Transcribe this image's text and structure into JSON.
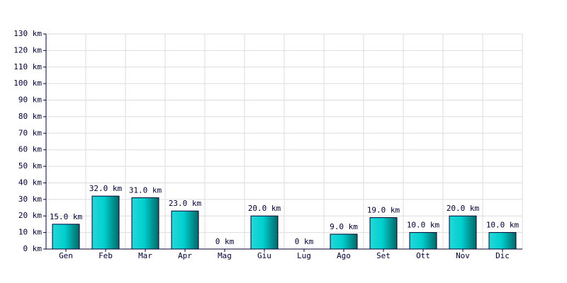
{
  "chart_data": {
    "type": "bar",
    "categories": [
      "Gen",
      "Feb",
      "Mar",
      "Apr",
      "Mag",
      "Giu",
      "Lug",
      "Ago",
      "Set",
      "Ott",
      "Nov",
      "Dic"
    ],
    "values": [
      15,
      32,
      31,
      23,
      0,
      20,
      0,
      9,
      19,
      10,
      20,
      10
    ],
    "value_labels": [
      "15.0 km",
      "32.0 km",
      "31.0 km",
      "23.0 km",
      "0 km",
      "20.0 km",
      "0 km",
      "9.0 km",
      "19.0 km",
      "10.0 km",
      "20.0 km",
      "10.0 km"
    ],
    "color": "#00d0d0",
    "ylim": [
      0,
      130
    ],
    "yticks": [
      {
        "value": 0,
        "label": "0 km"
      },
      {
        "value": 10,
        "label": "10 km"
      },
      {
        "value": 20,
        "label": "20 km"
      },
      {
        "value": 30,
        "label": "30 km"
      },
      {
        "value": 40,
        "label": "40 km"
      },
      {
        "value": 50,
        "label": "50 km"
      },
      {
        "value": 60,
        "label": "60 km"
      },
      {
        "value": 70,
        "label": "70 km"
      },
      {
        "value": 80,
        "label": "80 km"
      },
      {
        "value": 90,
        "label": "90 km"
      },
      {
        "value": 100,
        "label": "100 km"
      },
      {
        "value": 110,
        "label": "110 km"
      },
      {
        "value": 120,
        "label": "120 km"
      },
      {
        "value": 130,
        "label": "130 km"
      }
    ],
    "grid": true
  }
}
